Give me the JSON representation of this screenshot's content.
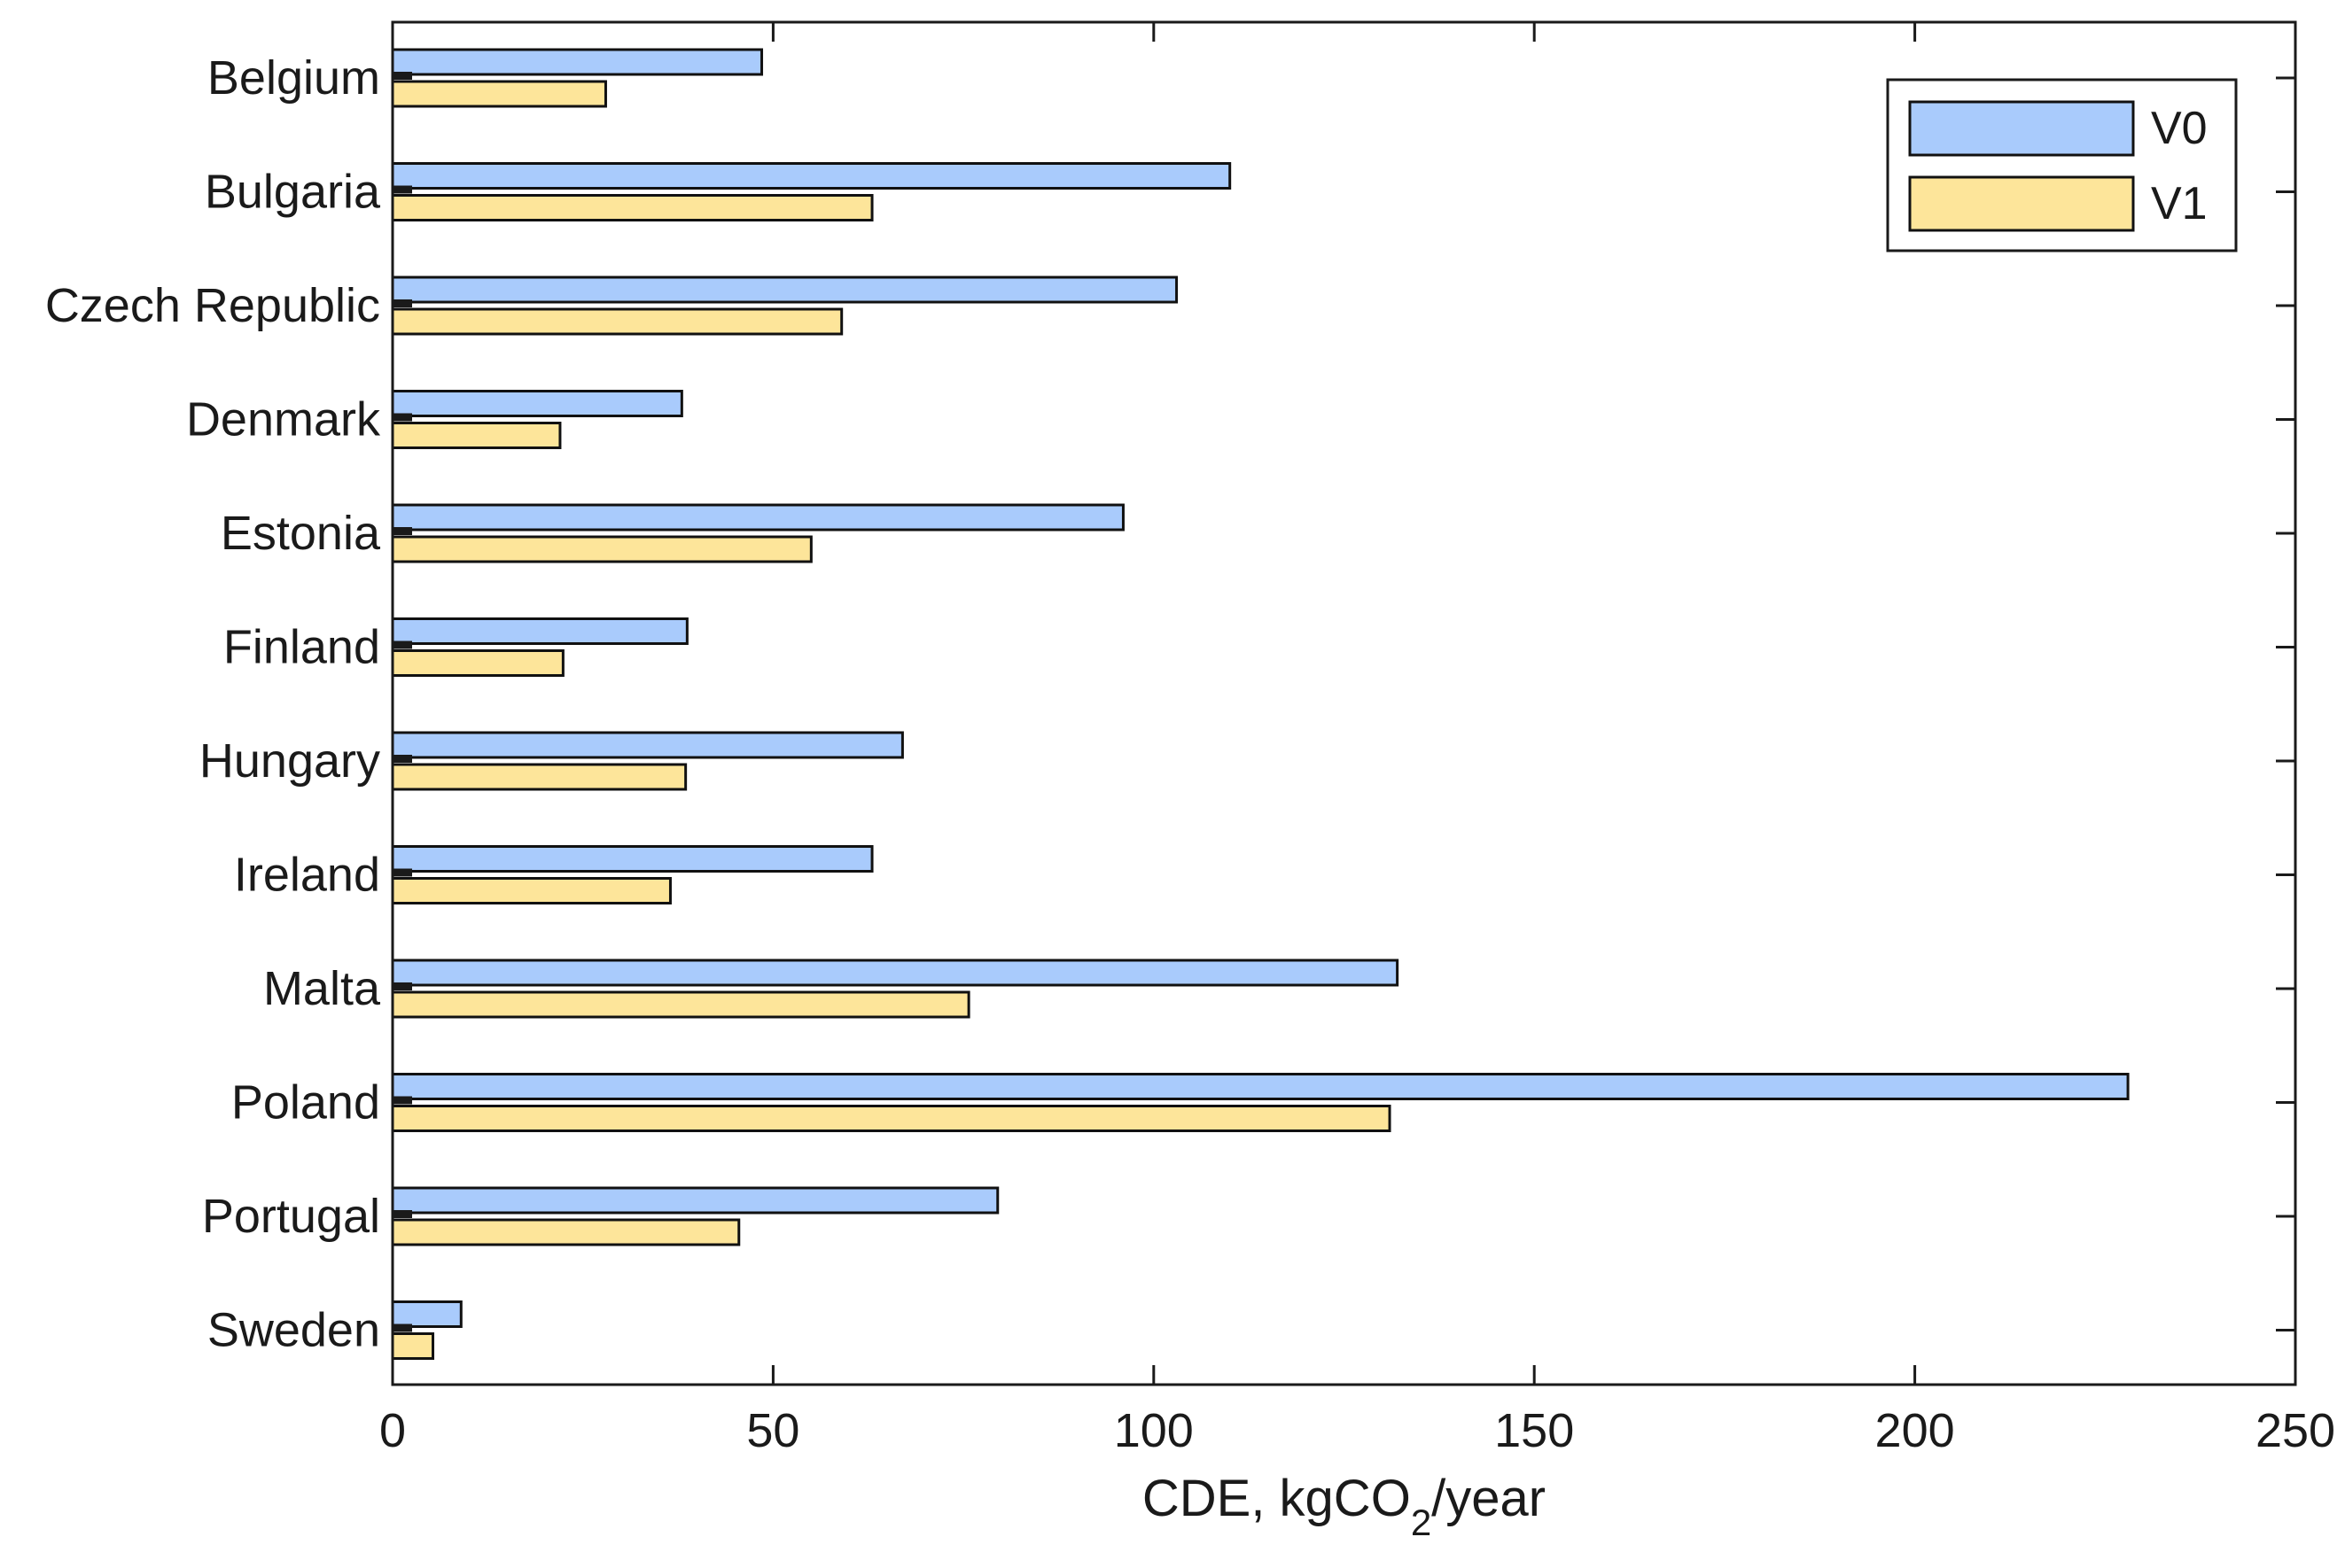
{
  "chart_data": {
    "type": "bar",
    "orientation": "horizontal",
    "categories": [
      "Belgium",
      "Bulgaria",
      "Czech Republic",
      "Denmark",
      "Estonia",
      "Finland",
      "Hungary",
      "Ireland",
      "Malta",
      "Poland",
      "Portugal",
      "Sweden"
    ],
    "series": [
      {
        "name": "V0",
        "color": "#a9cbfc",
        "values": [
          48.5,
          110,
          103,
          38,
          96,
          38.7,
          67,
          63,
          132,
          228,
          79.5,
          9
        ]
      },
      {
        "name": "V1",
        "color": "#fde59a",
        "values": [
          28,
          63,
          59,
          22,
          55,
          22.4,
          38.5,
          36.5,
          75.7,
          131,
          45.5,
          5.3
        ]
      }
    ],
    "title": "",
    "xlabel": {
      "main": "CDE, kgCO",
      "sub": "2",
      "suffix": "/year"
    },
    "ylabel": "",
    "xlim": [
      0,
      250
    ],
    "xticks": [
      0,
      50,
      100,
      150,
      200,
      250
    ],
    "xtick_labels": [
      "0",
      "50",
      "100",
      "150",
      "200",
      "250"
    ],
    "grid": false,
    "legend": {
      "position": "top-right",
      "entries": [
        "V0",
        "V1"
      ]
    },
    "colors": {
      "axis": "#1a1a1a",
      "bar_edge": "#111111"
    }
  }
}
